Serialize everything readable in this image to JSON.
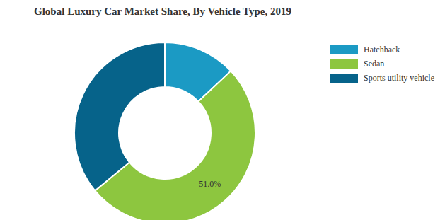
{
  "chart_data": {
    "type": "pie",
    "title": "Global Luxury Car Market Share, By Vehicle Type, 2019",
    "categories": [
      "Hatchback",
      "Sedan",
      "Sports utility vehicle"
    ],
    "values": [
      13,
      51,
      36
    ],
    "value_labels": [
      null,
      "51.0%",
      null
    ],
    "colors": [
      "#1b9ac4",
      "#8dc63f",
      "#06638a"
    ],
    "data_labels": true,
    "legend": "right"
  }
}
